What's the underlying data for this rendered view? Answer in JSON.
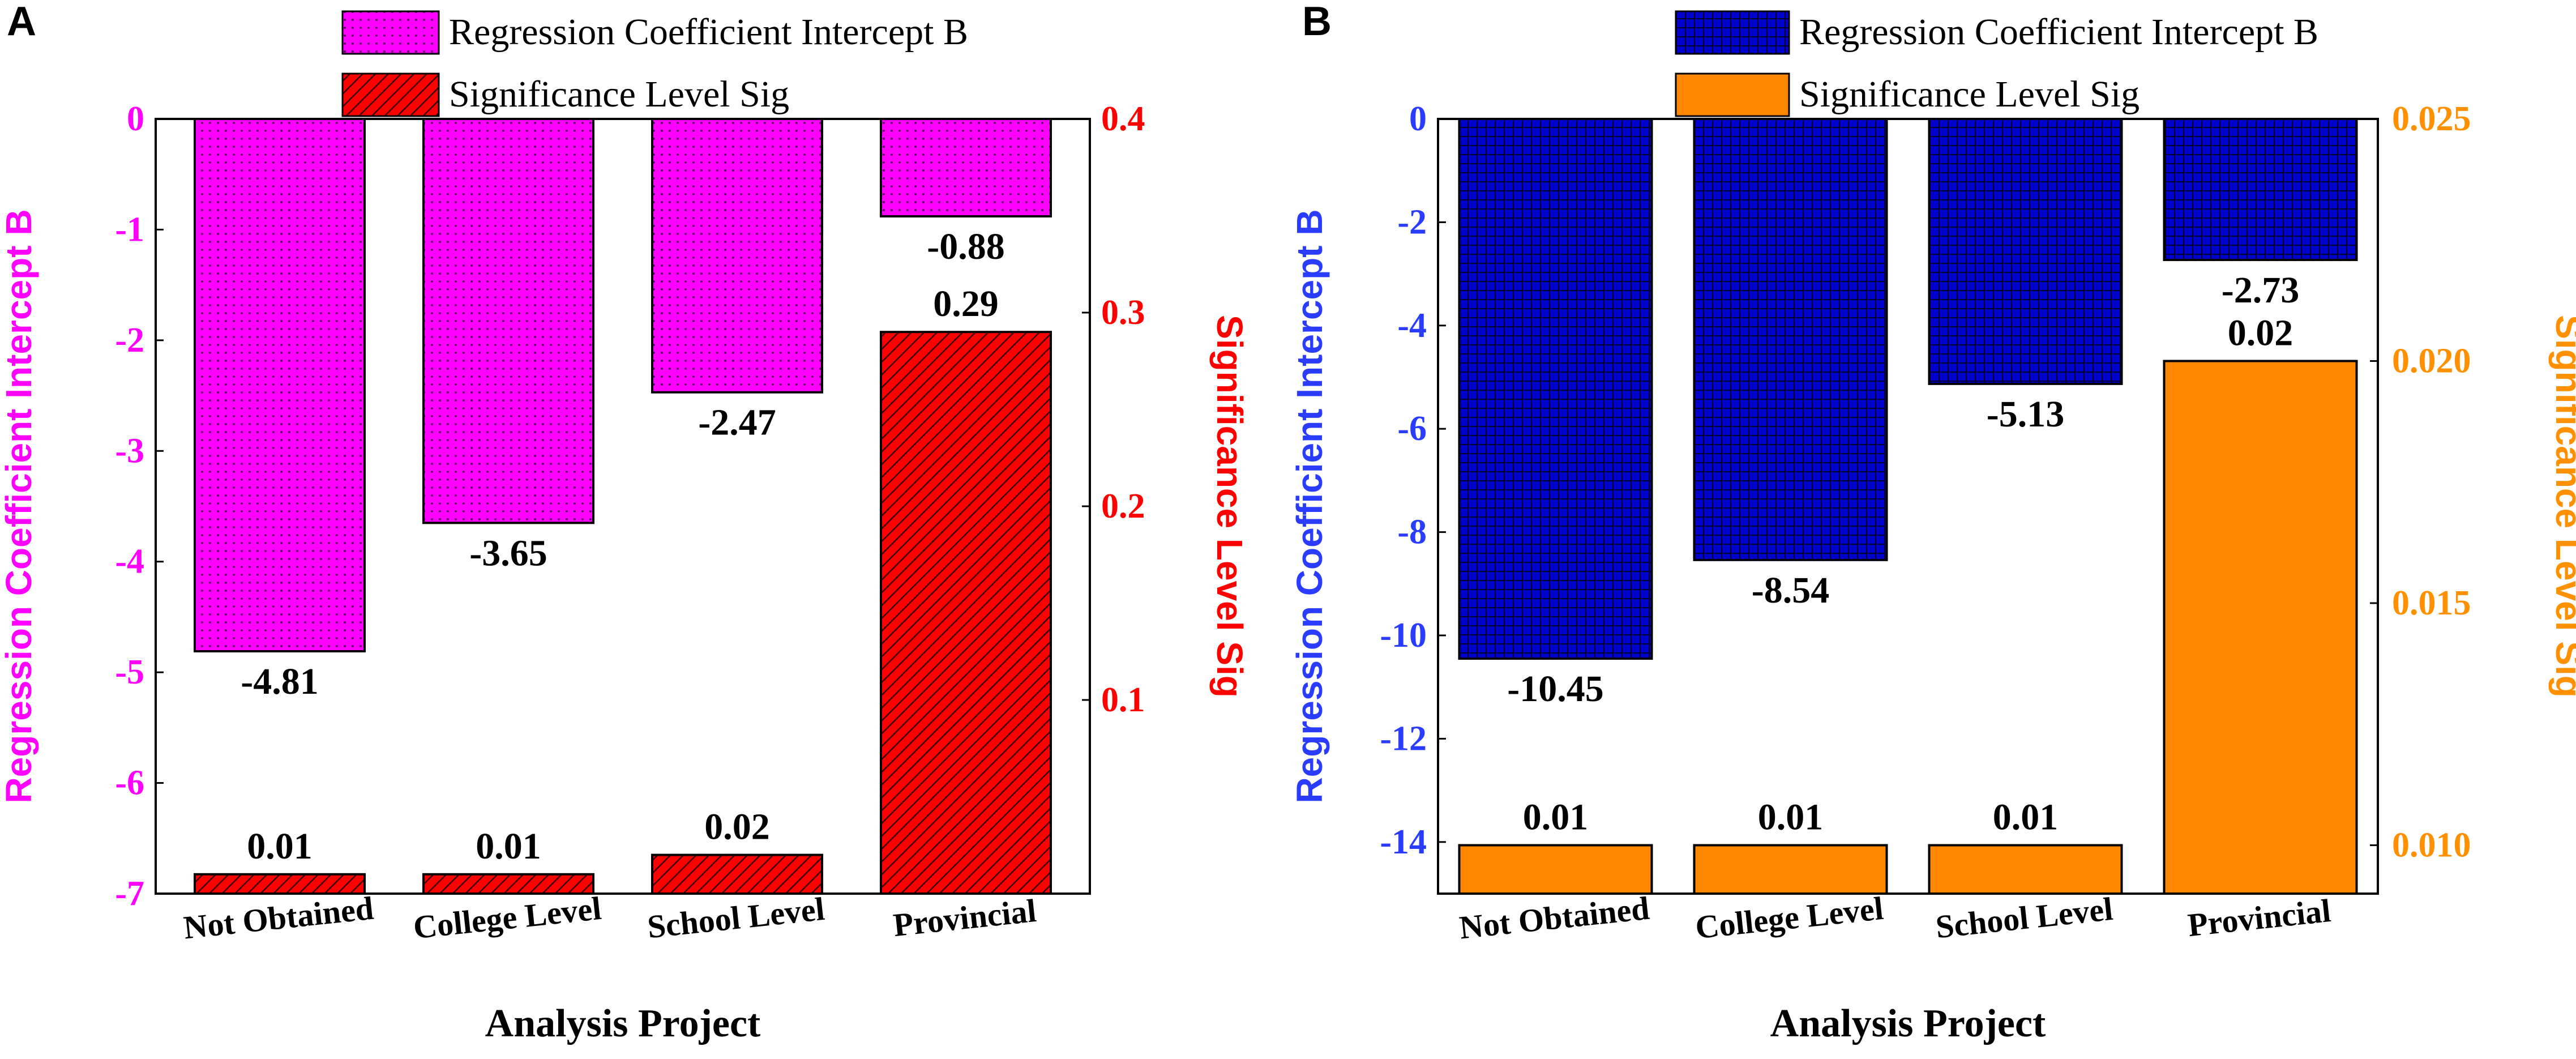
{
  "chart_data": [
    {
      "panel": "A",
      "type": "bar",
      "xlabel": "Analysis Project",
      "categories": [
        "Not Obtained",
        "College Level",
        "School Level",
        "Provincial"
      ],
      "legend": [
        "Regression Coefficient Intercept B",
        "Significance Level Sig"
      ],
      "left_axis": {
        "label": "Regression Coefficient Intercept B",
        "color": "#ff00ff",
        "ylim": [
          -7,
          0
        ],
        "ticks": [
          "0",
          "-1",
          "-2",
          "-3",
          "-4",
          "-5",
          "-6",
          "-7"
        ]
      },
      "right_axis": {
        "label": "Significance Level Sig",
        "color": "#ff0000",
        "ylim": [
          0,
          0.4
        ],
        "ticks": [
          "0.1",
          "0.2",
          "0.3",
          "0.4"
        ]
      },
      "series": [
        {
          "name": "Regression Coefficient Intercept B",
          "axis": "left",
          "values": [
            -4.81,
            -3.65,
            -2.47,
            -0.88
          ],
          "labels": [
            "-4.81",
            "-3.65",
            "-2.47",
            "-0.88"
          ],
          "fill": "#ff00ff",
          "pattern": "dots"
        },
        {
          "name": "Significance Level Sig",
          "axis": "right",
          "values": [
            0.01,
            0.01,
            0.02,
            0.29
          ],
          "labels": [
            "0.01",
            "0.01",
            "0.02",
            "0.29"
          ],
          "fill": "#ff0000",
          "pattern": "hatch"
        }
      ]
    },
    {
      "panel": "B",
      "type": "bar",
      "xlabel": "Analysis Project",
      "categories": [
        "Not Obtained",
        "College Level",
        "School Level",
        "Provincial"
      ],
      "legend": [
        "Regression Coefficient Intercept B",
        "Significance Level Sig"
      ],
      "left_axis": {
        "label": "Regression Coefficient Intercept B",
        "color": "#2a3cff",
        "ylim": [
          -15,
          0
        ],
        "ticks": [
          "0",
          "-2",
          "-4",
          "-6",
          "-8",
          "-10",
          "-12",
          "-14"
        ]
      },
      "right_axis": {
        "label": "Significance Level Sig",
        "color": "#ff9000",
        "ylim": [
          0.009,
          0.025
        ],
        "ticks": [
          "0.010",
          "0.015",
          "0.020",
          "0.025"
        ]
      },
      "series": [
        {
          "name": "Regression Coefficient Intercept B",
          "axis": "left",
          "values": [
            -10.45,
            -8.54,
            -5.13,
            -2.73
          ],
          "labels": [
            "-10.45",
            "-8.54",
            "-5.13",
            "-2.73"
          ],
          "fill": "#0000cc",
          "pattern": "grid"
        },
        {
          "name": "Significance Level Sig",
          "axis": "right",
          "values": [
            0.01,
            0.01,
            0.01,
            0.02
          ],
          "labels": [
            "0.01",
            "0.01",
            "0.01",
            "0.02"
          ],
          "fill": "#ff8800",
          "pattern": "solid"
        }
      ]
    }
  ]
}
